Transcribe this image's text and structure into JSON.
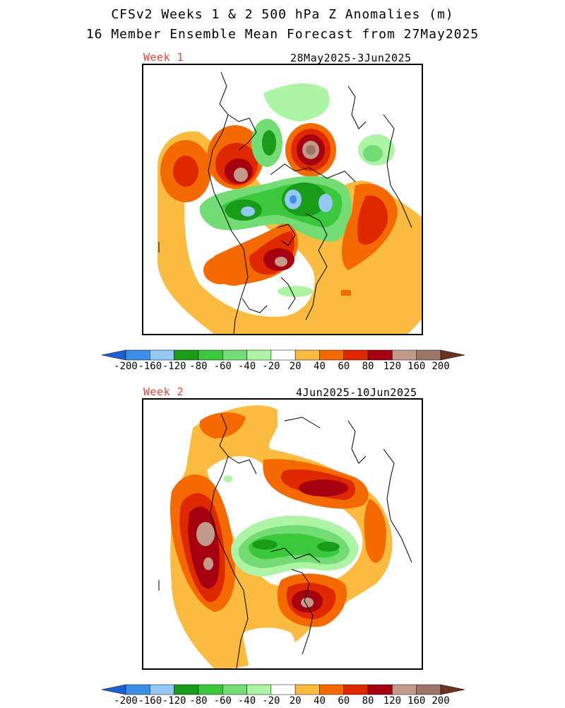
{
  "title": {
    "line1": "CFSv2 Weeks 1 & 2 500 hPa Z Anomalies (m)",
    "line2": "16 Member Ensemble Mean Forecast from 27May2025"
  },
  "panels": [
    {
      "label": "Week 1",
      "dates": "28May2025-3Jun2025"
    },
    {
      "label": "Week 2",
      "dates": "4Jun2025-10Jun2025"
    }
  ],
  "colorbar": {
    "unit": "m",
    "ticks": [
      "-200",
      "-160",
      "-120",
      "-80",
      "-60",
      "-40",
      "-20",
      "20",
      "40",
      "60",
      "80",
      "120",
      "160",
      "200"
    ],
    "colors": [
      "#1f5fd6",
      "#3d8ee8",
      "#94c9f4",
      "#199c19",
      "#3cc83c",
      "#74dc74",
      "#aef4a6",
      "#ffffff",
      "#fbba40",
      "#f56a00",
      "#e02800",
      "#a40010",
      "#c49a8c",
      "#9c7468",
      "#6a3420"
    ]
  },
  "colors": {
    "week_label": "#e0403a",
    "coastline": "#000000",
    "frame": "#000000"
  }
}
